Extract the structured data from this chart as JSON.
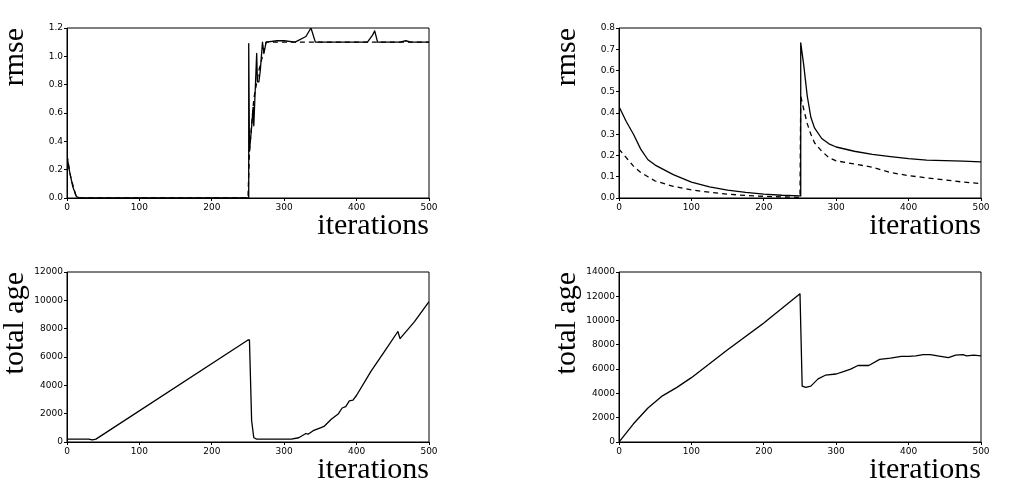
{
  "chart_data": [
    {
      "type": "line",
      "xlabel": "iterations",
      "ylabel": "rmse",
      "grid": false,
      "legend": false,
      "marker": "none",
      "xlim": [
        0,
        500
      ],
      "xticks": [
        0,
        100,
        200,
        300,
        400,
        500
      ],
      "ylim": [
        0,
        1.2
      ],
      "yticks": [
        {
          "value": 0,
          "label": "0.0"
        },
        {
          "value": 0.2,
          "label": "0.2"
        },
        {
          "value": 0.4,
          "label": "0.4"
        },
        {
          "value": 0.6,
          "label": "0.6"
        },
        {
          "value": 0.8,
          "label": "0.8"
        },
        {
          "value": 1.0,
          "label": "1.0"
        },
        {
          "value": 1.2,
          "label": "1.2"
        }
      ],
      "series": [
        {
          "color": "#000000",
          "line_style": "solid",
          "x": [
            0,
            3,
            8,
            13,
            18,
            250,
            251,
            252,
            255,
            257,
            258,
            262,
            263,
            265,
            267,
            270,
            272,
            275,
            290,
            300,
            315,
            330,
            337,
            343,
            415,
            422,
            425,
            429,
            460,
            468,
            475,
            500
          ],
          "values": [
            0.3,
            0.2,
            0.08,
            0.01,
            0,
            0,
            1.09,
            0.33,
            0.5,
            0.64,
            0.51,
            1.02,
            0.82,
            0.82,
            0.9,
            1.1,
            1.02,
            1.1,
            1.11,
            1.11,
            1.1,
            1.14,
            1.2,
            1.1,
            1.1,
            1.15,
            1.18,
            1.1,
            1.1,
            1.11,
            1.1,
            1.1
          ]
        },
        {
          "color": "#000000",
          "line_style": "dashed",
          "x": [
            0,
            5,
            12,
            18,
            250,
            252,
            258,
            265,
            275,
            500
          ],
          "values": [
            0.3,
            0.15,
            0.02,
            0,
            0,
            0.33,
            0.7,
            0.9,
            1.1,
            1.1
          ]
        }
      ]
    },
    {
      "type": "line",
      "xlabel": "iterations",
      "ylabel": "rmse",
      "grid": false,
      "legend": false,
      "marker": "none",
      "xlim": [
        0,
        500
      ],
      "xticks": [
        0,
        100,
        200,
        300,
        400,
        500
      ],
      "ylim": [
        0,
        0.8
      ],
      "yticks": [
        {
          "value": 0,
          "label": "0.0"
        },
        {
          "value": 0.1,
          "label": "0.1"
        },
        {
          "value": 0.2,
          "label": "0.2"
        },
        {
          "value": 0.3,
          "label": "0.3"
        },
        {
          "value": 0.4,
          "label": "0.4"
        },
        {
          "value": 0.5,
          "label": "0.5"
        },
        {
          "value": 0.6,
          "label": "0.6"
        },
        {
          "value": 0.7,
          "label": "0.7"
        },
        {
          "value": 0.8,
          "label": "0.8"
        }
      ],
      "series": [
        {
          "color": "#000000",
          "line_style": "solid",
          "x": [
            0,
            10,
            20,
            30,
            40,
            50,
            75,
            100,
            125,
            150,
            175,
            200,
            225,
            250,
            251,
            255,
            260,
            265,
            270,
            280,
            290,
            300,
            325,
            350,
            375,
            400,
            425,
            450,
            475,
            500
          ],
          "values": [
            0.43,
            0.36,
            0.3,
            0.23,
            0.18,
            0.155,
            0.11,
            0.075,
            0.052,
            0.037,
            0.026,
            0.018,
            0.013,
            0.01,
            0.73,
            0.63,
            0.48,
            0.38,
            0.33,
            0.28,
            0.255,
            0.24,
            0.22,
            0.205,
            0.195,
            0.185,
            0.178,
            0.176,
            0.174,
            0.17
          ]
        },
        {
          "color": "#000000",
          "line_style": "dashed",
          "x": [
            0,
            10,
            20,
            30,
            40,
            50,
            75,
            100,
            125,
            150,
            175,
            200,
            225,
            250,
            251,
            255,
            260,
            265,
            270,
            280,
            290,
            300,
            325,
            350,
            375,
            400,
            425,
            450,
            475,
            500
          ],
          "values": [
            0.23,
            0.19,
            0.15,
            0.12,
            0.1,
            0.08,
            0.055,
            0.038,
            0.027,
            0.018,
            0.012,
            0.008,
            0.005,
            0.003,
            0.48,
            0.42,
            0.35,
            0.3,
            0.26,
            0.22,
            0.19,
            0.175,
            0.16,
            0.145,
            0.12,
            0.105,
            0.095,
            0.085,
            0.075,
            0.068
          ]
        }
      ]
    },
    {
      "type": "line",
      "xlabel": "iterations",
      "ylabel": "total age",
      "grid": false,
      "legend": false,
      "marker": "none",
      "xlim": [
        0,
        500
      ],
      "xticks": [
        0,
        100,
        200,
        300,
        400,
        500
      ],
      "ylim": [
        0,
        12000
      ],
      "yticks": [
        0,
        2000,
        4000,
        6000,
        8000,
        10000,
        12000
      ],
      "series": [
        {
          "color": "#000000",
          "line_style": "solid",
          "x": [
            0,
            30,
            35,
            40,
            250,
            252,
            255,
            258,
            262,
            300,
            310,
            320,
            330,
            333,
            340,
            350,
            355,
            365,
            375,
            380,
            385,
            390,
            395,
            400,
            420,
            440,
            457,
            460,
            480,
            500
          ],
          "values": [
            200,
            200,
            150,
            200,
            7200,
            7200,
            1500,
            300,
            200,
            200,
            200,
            300,
            600,
            550,
            800,
            1000,
            1100,
            1600,
            2000,
            2400,
            2500,
            2900,
            2950,
            3300,
            5000,
            6500,
            7800,
            7300,
            8500,
            9900
          ]
        }
      ]
    },
    {
      "type": "line",
      "xlabel": "iterations",
      "ylabel": "total age",
      "grid": false,
      "legend": false,
      "marker": "none",
      "xlim": [
        0,
        500
      ],
      "xticks": [
        0,
        100,
        200,
        300,
        400,
        500
      ],
      "ylim": [
        0,
        14000
      ],
      "yticks": [
        0,
        2000,
        4000,
        6000,
        8000,
        10000,
        12000,
        14000
      ],
      "series": [
        {
          "color": "#000000",
          "line_style": "solid",
          "x": [
            0,
            20,
            40,
            60,
            80,
            100,
            150,
            200,
            250,
            251,
            253,
            258,
            265,
            275,
            285,
            300,
            310,
            320,
            330,
            345,
            360,
            375,
            390,
            400,
            410,
            420,
            430,
            440,
            455,
            465,
            475,
            480,
            490,
            500
          ],
          "values": [
            0,
            1500,
            2800,
            3800,
            4500,
            5300,
            7600,
            9800,
            12200,
            12200,
            4600,
            4500,
            4600,
            5200,
            5500,
            5600,
            5800,
            6000,
            6300,
            6300,
            6800,
            6900,
            7050,
            7050,
            7100,
            7200,
            7200,
            7100,
            6950,
            7150,
            7200,
            7100,
            7150,
            7100
          ]
        }
      ]
    }
  ]
}
